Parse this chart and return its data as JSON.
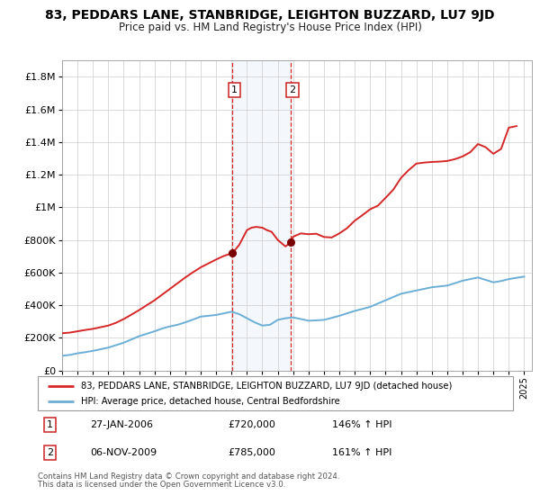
{
  "title": "83, PEDDARS LANE, STANBRIDGE, LEIGHTON BUZZARD, LU7 9JD",
  "subtitle": "Price paid vs. HM Land Registry's House Price Index (HPI)",
  "hpi_label": "HPI: Average price, detached house, Central Bedfordshire",
  "property_label": "83, PEDDARS LANE, STANBRIDGE, LEIGHTON BUZZARD, LU7 9JD (detached house)",
  "sale1_date": "27-JAN-2006",
  "sale1_price": "£720,000",
  "sale1_hpi": "146% ↑ HPI",
  "sale2_date": "06-NOV-2009",
  "sale2_price": "£785,000",
  "sale2_hpi": "161% ↑ HPI",
  "footnote1": "Contains HM Land Registry data © Crown copyright and database right 2024.",
  "footnote2": "This data is licensed under the Open Government Licence v3.0.",
  "hpi_color": "#6baed6",
  "property_color": "#d62728",
  "sale_marker_color": "#7a0000",
  "vline_color": "#d62728",
  "shade_color": "#c6dbef",
  "ylim": [
    0,
    1900000
  ],
  "yticks": [
    0,
    200000,
    400000,
    600000,
    800000,
    1000000,
    1200000,
    1400000,
    1600000,
    1800000
  ],
  "ytick_labels": [
    "£0",
    "£200K",
    "£400K",
    "£600K",
    "£800K",
    "£1M",
    "£1.2M",
    "£1.4M",
    "£1.6M",
    "£1.8M"
  ],
  "xmin": 1995.0,
  "xmax": 2025.5,
  "sale1_x": 2006.07,
  "sale1_y": 720000,
  "sale2_x": 2009.84,
  "sale2_y": 785000
}
